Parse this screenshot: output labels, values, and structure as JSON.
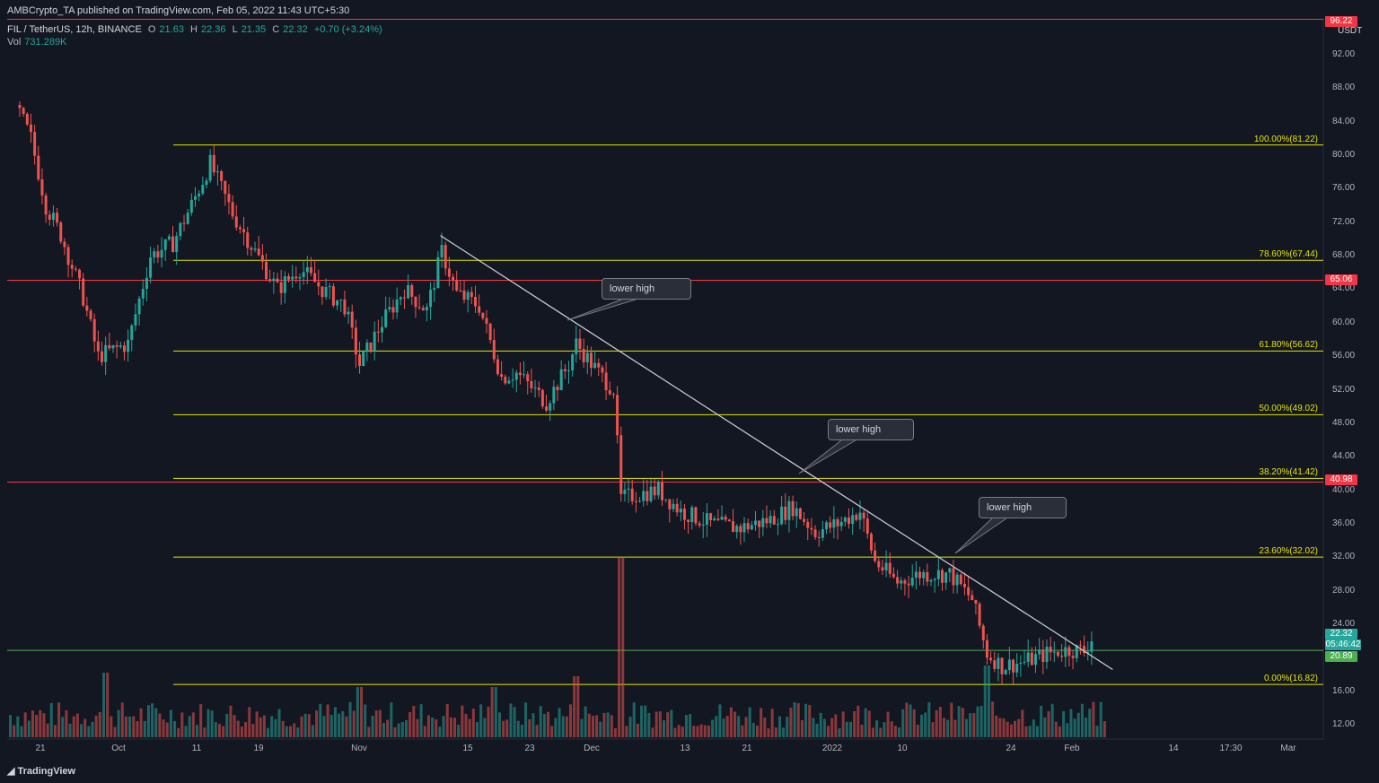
{
  "header": {
    "publisher": "AMBCrypto_TA published on TradingView.com, Feb 05, 2022 11:43 UTC+5:30",
    "symbol": "FIL / TetherUS, 12h, BINANCE",
    "o_label": "O",
    "o_value": "21.63",
    "h_label": "H",
    "h_value": "22.36",
    "l_label": "L",
    "l_value": "21.35",
    "c_label": "C",
    "c_value": "22.32",
    "change": "+0.70 (+3.24%)",
    "vol_label": "Vol",
    "vol_value": "731.289K"
  },
  "branding": {
    "name": "TradingView",
    "logo_icon": "tradingview-logo-icon"
  },
  "colors": {
    "background": "#131722",
    "up": "#26a69a",
    "down": "#ef5350",
    "fib": "#e5e500",
    "resistance": "#f23645",
    "support": "#4caf50",
    "trend": "#d1d4dc"
  },
  "chart_data": {
    "type": "candlestick",
    "currency": "USDT",
    "y_ticks": [
      "92.00",
      "88.00",
      "84.00",
      "80.00",
      "76.00",
      "72.00",
      "68.00",
      "64.00",
      "60.00",
      "56.00",
      "52.00",
      "48.00",
      "44.00",
      "40.00",
      "36.00",
      "32.00",
      "28.00",
      "24.00",
      "16.00",
      "12.00"
    ],
    "x_ticks": [
      "21",
      "Oct",
      "11",
      "19",
      "Nov",
      "15",
      "23",
      "Dec",
      "13",
      "21",
      "2022",
      "10",
      "24",
      "Feb",
      "14",
      "17:30",
      "Mar"
    ],
    "fib_levels": [
      {
        "label": "100.00%(81.22)",
        "value": 81.22
      },
      {
        "label": "78.60%(67.44)",
        "value": 67.44
      },
      {
        "label": "61.80%(56.62)",
        "value": 56.62
      },
      {
        "label": "50.00%(49.02)",
        "value": 49.02
      },
      {
        "label": "38.20%(41.42)",
        "value": 41.42
      },
      {
        "label": "23.60%(32.02)",
        "value": 32.02
      },
      {
        "label": "0.00%(16.82)",
        "value": 16.82
      }
    ],
    "horizontal_levels": [
      {
        "value": 96.22,
        "label": "96.22",
        "color": "#f23645"
      },
      {
        "value": 65.06,
        "label": "65.06",
        "color": "#f23645"
      },
      {
        "value": 40.98,
        "label": "40.98",
        "color": "#f23645"
      },
      {
        "value": 20.89,
        "label": "20.89",
        "color": "#4caf50"
      }
    ],
    "last_price": {
      "value": 22.32,
      "label": "22.32",
      "countdown": "05:46:42"
    },
    "annotations": [
      "lower high",
      "lower high",
      "lower high"
    ],
    "trendline": {
      "from": {
        "date": "Nov 10",
        "price": 70.4
      },
      "to": {
        "date": "Feb 08",
        "price": 18.6
      }
    },
    "price_path": [
      {
        "date": "Sep 14",
        "price": 86.0
      },
      {
        "date": "Sep 16",
        "price": 82.0
      },
      {
        "date": "Sep 18",
        "price": 74.0
      },
      {
        "date": "Sep 20",
        "price": 70.5
      },
      {
        "date": "Sep 23",
        "price": 63.0
      },
      {
        "date": "Sep 25",
        "price": 56.0
      },
      {
        "date": "Sep 29",
        "price": 57.5
      },
      {
        "date": "Oct 02",
        "price": 68.0
      },
      {
        "date": "Oct 05",
        "price": 69.5
      },
      {
        "date": "Oct 08",
        "price": 75.0
      },
      {
        "date": "Oct 10",
        "price": 79.0
      },
      {
        "date": "Oct 13",
        "price": 73.0
      },
      {
        "date": "Oct 16",
        "price": 68.5
      },
      {
        "date": "Oct 19",
        "price": 64.0
      },
      {
        "date": "Oct 22",
        "price": 66.5
      },
      {
        "date": "Oct 25",
        "price": 64.0
      },
      {
        "date": "Oct 28",
        "price": 62.0
      },
      {
        "date": "Oct 30",
        "price": 55.0
      },
      {
        "date": "Nov 02",
        "price": 60.0
      },
      {
        "date": "Nov 05",
        "price": 64.0
      },
      {
        "date": "Nov 08",
        "price": 61.5
      },
      {
        "date": "Nov 10",
        "price": 68.5
      },
      {
        "date": "Nov 12",
        "price": 63.5
      },
      {
        "date": "Nov 15",
        "price": 62.0
      },
      {
        "date": "Nov 18",
        "price": 53.5
      },
      {
        "date": "Nov 20",
        "price": 54.0
      },
      {
        "date": "Nov 24",
        "price": 50.5
      },
      {
        "date": "Nov 27",
        "price": 55.0
      },
      {
        "date": "Nov 28",
        "price": 57.5
      },
      {
        "date": "Dec 01",
        "price": 54.0
      },
      {
        "date": "Dec 03",
        "price": 52.0
      },
      {
        "date": "Dec 04",
        "price": 39.0
      },
      {
        "date": "Dec 06",
        "price": 39.5
      },
      {
        "date": "Dec 09",
        "price": 40.0
      },
      {
        "date": "Dec 12",
        "price": 37.5
      },
      {
        "date": "Dec 16",
        "price": 36.0
      },
      {
        "date": "Dec 20",
        "price": 35.5
      },
      {
        "date": "Dec 24",
        "price": 36.5
      },
      {
        "date": "Dec 27",
        "price": 38.0
      },
      {
        "date": "Dec 30",
        "price": 35.0
      },
      {
        "date": "Jan 02",
        "price": 36.0
      },
      {
        "date": "Jan 05",
        "price": 37.5
      },
      {
        "date": "Jan 07",
        "price": 31.5
      },
      {
        "date": "Jan 10",
        "price": 29.0
      },
      {
        "date": "Jan 13",
        "price": 30.0
      },
      {
        "date": "Jan 17",
        "price": 30.0
      },
      {
        "date": "Jan 20",
        "price": 27.0
      },
      {
        "date": "Jan 22",
        "price": 20.5
      },
      {
        "date": "Jan 24",
        "price": 19.0
      },
      {
        "date": "Jan 27",
        "price": 19.5
      },
      {
        "date": "Jan 30",
        "price": 20.5
      },
      {
        "date": "Feb 02",
        "price": 21.0
      },
      {
        "date": "Feb 04",
        "price": 20.8
      },
      {
        "date": "Feb 05",
        "price": 22.3
      }
    ],
    "volume_spikes": [
      {
        "date": "Sep 26",
        "volume_pct": 0.36
      },
      {
        "date": "Dec 04",
        "volume_pct": 1.0
      },
      {
        "date": "Nov 28",
        "volume_pct": 0.34
      },
      {
        "date": "Nov 17",
        "volume_pct": 0.28
      },
      {
        "date": "Oct 30",
        "volume_pct": 0.28
      },
      {
        "date": "Jan 22",
        "volume_pct": 0.4
      }
    ]
  }
}
